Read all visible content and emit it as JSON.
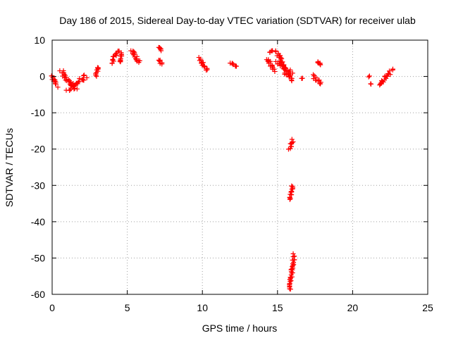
{
  "chart_data": {
    "type": "scatter",
    "title": "Day 186 of 2015, Sidereal Day-to-day VTEC variation (SDTVAR) for receiver ulab",
    "xlabel": "GPS time / hours",
    "ylabel": "SDTVAR / TECUs",
    "xlim": [
      0,
      25
    ],
    "ylim": [
      -60,
      10
    ],
    "xticks": [
      0,
      5,
      10,
      15,
      20,
      25
    ],
    "yticks": [
      10,
      0,
      -10,
      -20,
      -30,
      -40,
      -50,
      -60
    ],
    "xtick_labels": [
      "0",
      "5",
      "10",
      "15",
      "20",
      "25"
    ],
    "ytick_labels": [
      "10",
      "0",
      "-10",
      "-20",
      "-30",
      "-40",
      "-50",
      "-60"
    ],
    "grid": true,
    "marker": "+",
    "color": "#ff0000",
    "clusters": [
      {
        "name": "c01",
        "x": [
          0.0,
          0.3
        ],
        "y": [
          0.2,
          -2.6
        ],
        "spread": 0.8
      },
      {
        "name": "c02",
        "x": [
          0.6,
          1.6
        ],
        "y": [
          1.5,
          -3.8
        ],
        "spread": 1.2
      },
      {
        "name": "c03",
        "x": [
          1.0,
          2.3
        ],
        "y": [
          -3.5,
          0.0
        ],
        "spread": 1.4
      },
      {
        "name": "c04",
        "x": [
          2.9,
          3.1
        ],
        "y": [
          -0.2,
          2.6
        ],
        "spread": 0.6
      },
      {
        "name": "c05",
        "x": [
          4.0,
          4.4
        ],
        "y": [
          3.8,
          7.4
        ],
        "spread": 1.0
      },
      {
        "name": "c06",
        "x": [
          4.5,
          4.6
        ],
        "y": [
          4.0,
          6.5
        ],
        "spread": 0.4
      },
      {
        "name": "c07",
        "x": [
          5.3,
          5.8
        ],
        "y": [
          7.2,
          3.8
        ],
        "spread": 1.0
      },
      {
        "name": "c08",
        "x": [
          7.1,
          7.3
        ],
        "y": [
          8.0,
          7.2
        ],
        "spread": 0.3
      },
      {
        "name": "c09",
        "x": [
          7.1,
          7.3
        ],
        "y": [
          4.5,
          3.3
        ],
        "spread": 0.4
      },
      {
        "name": "c10",
        "x": [
          9.8,
          10.3
        ],
        "y": [
          5.0,
          1.8
        ],
        "spread": 1.0
      },
      {
        "name": "c11",
        "x": [
          11.9,
          12.3
        ],
        "y": [
          3.8,
          2.6
        ],
        "spread": 0.5
      },
      {
        "name": "c12",
        "x": [
          14.3,
          14.8
        ],
        "y": [
          5.0,
          1.5
        ],
        "spread": 1.0
      },
      {
        "name": "c13",
        "x": [
          14.5,
          14.7
        ],
        "y": [
          6.5,
          7.0
        ],
        "spread": 0.4
      },
      {
        "name": "c14",
        "x": [
          14.9,
          15.6
        ],
        "y": [
          7.0,
          2.0
        ],
        "spread": 1.5
      },
      {
        "name": "c15",
        "x": [
          15.0,
          16.0
        ],
        "y": [
          4.0,
          0.5
        ],
        "spread": 1.5
      },
      {
        "name": "c16",
        "x": [
          15.5,
          16.0
        ],
        "y": [
          1.0,
          -1.0
        ],
        "spread": 0.6
      },
      {
        "name": "c17",
        "x": [
          16.6,
          16.7
        ],
        "y": [
          -0.5,
          -0.5
        ],
        "spread": 0.2
      },
      {
        "name": "c18",
        "x": [
          17.4,
          17.9
        ],
        "y": [
          0.2,
          -2.2
        ],
        "spread": 0.8
      },
      {
        "name": "c19",
        "x": [
          17.7,
          17.9
        ],
        "y": [
          4.0,
          3.2
        ],
        "spread": 0.2
      },
      {
        "name": "c20",
        "x": [
          15.8,
          16.0
        ],
        "y": [
          -20.0,
          -17.5
        ],
        "spread": 0.5
      },
      {
        "name": "c21",
        "x": [
          15.8,
          16.0
        ],
        "y": [
          -34.0,
          -30.0
        ],
        "spread": 0.5
      },
      {
        "name": "c22",
        "x": [
          15.8,
          16.1
        ],
        "y": [
          -58.8,
          -49.0
        ],
        "spread": 0.5
      },
      {
        "name": "c23",
        "x": [
          21.1,
          21.1
        ],
        "y": [
          0.0,
          0.0
        ],
        "spread": 0.1
      },
      {
        "name": "c24",
        "x": [
          21.2,
          21.2
        ],
        "y": [
          -2.0,
          -2.0
        ],
        "spread": 0.1
      },
      {
        "name": "c25",
        "x": [
          21.8,
          22.6
        ],
        "y": [
          -2.5,
          1.6
        ],
        "spread": 1.2
      }
    ]
  }
}
